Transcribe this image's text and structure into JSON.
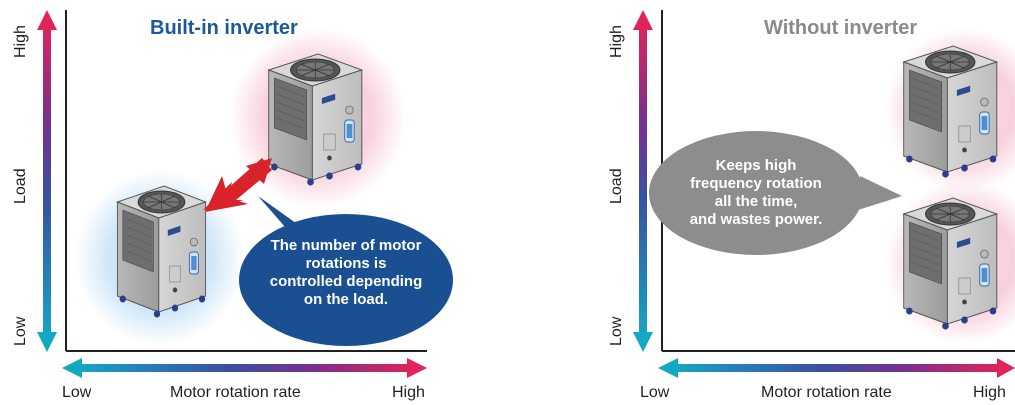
{
  "left": {
    "title": "Built-in inverter",
    "y_axis": {
      "high": "High",
      "mid": "Load",
      "low": "Low"
    },
    "x_axis": {
      "low": "Low",
      "mid": "Motor rotation rate",
      "high": "High"
    },
    "bubble_lines": [
      "The number of motor",
      "rotations is",
      "controlled depending",
      "on the load."
    ]
  },
  "right": {
    "title": "Without inverter",
    "y_axis": {
      "high": "High",
      "mid": "Load",
      "low": "Low"
    },
    "x_axis": {
      "low": "Low",
      "mid": "Motor rotation rate",
      "high": "High"
    },
    "bubble_lines": [
      "Keeps high",
      "frequency rotation",
      "all the time,",
      "and wastes power."
    ]
  },
  "colors": {
    "title_left": "#1a5a9e",
    "title_right": "#8a8a8a",
    "bubble_left": "#1a4f91",
    "bubble_right": "#8d8d8f",
    "arrow_red": "#d9232a",
    "axis_cyan": "#14a8c4",
    "axis_purple": "#5a3a9a",
    "axis_pink": "#e0245a"
  },
  "icons": [
    "chiller-unit-icon",
    "double-arrow-icon",
    "speech-bubble-icon"
  ]
}
